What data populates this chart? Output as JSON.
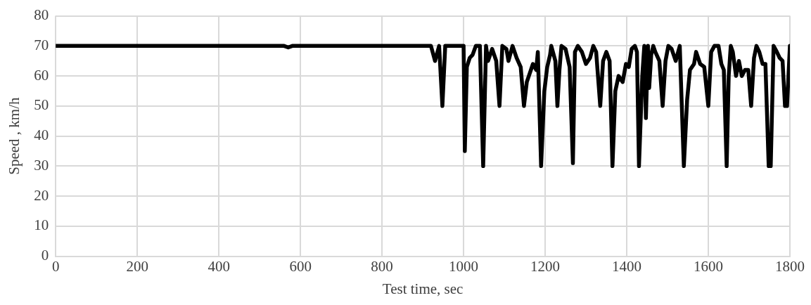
{
  "chart_data": {
    "type": "line",
    "xlabel": "Test time, sec",
    "ylabel": "Speed , km/h",
    "xlim": [
      0,
      1800
    ],
    "xticks": [
      0,
      200,
      400,
      600,
      800,
      1000,
      1200,
      1400,
      1600,
      1800
    ],
    "ylim": [
      0,
      80
    ],
    "yticks": [
      0,
      10,
      20,
      30,
      40,
      50,
      60,
      70,
      80
    ],
    "grid": true,
    "legend": false,
    "marker": "none",
    "line_style": "solid",
    "series": [
      {
        "color": "#000000",
        "x": [
          0,
          200,
          400,
          560,
          570,
          580,
          700,
          850,
          900,
          920,
          930,
          940,
          948,
          955,
          960,
          1000,
          1003,
          1008,
          1015,
          1022,
          1030,
          1040,
          1048,
          1055,
          1060,
          1070,
          1080,
          1088,
          1095,
          1105,
          1110,
          1120,
          1130,
          1140,
          1148,
          1155,
          1160,
          1170,
          1178,
          1182,
          1190,
          1198,
          1205,
          1212,
          1215,
          1225,
          1230,
          1235,
          1240,
          1250,
          1260,
          1268,
          1273,
          1280,
          1290,
          1300,
          1310,
          1318,
          1325,
          1335,
          1342,
          1350,
          1358,
          1365,
          1372,
          1380,
          1390,
          1398,
          1405,
          1412,
          1420,
          1425,
          1430,
          1438,
          1443,
          1447,
          1452,
          1455,
          1460,
          1465,
          1470,
          1480,
          1488,
          1495,
          1502,
          1510,
          1515,
          1520,
          1530,
          1540,
          1548,
          1555,
          1565,
          1570,
          1580,
          1590,
          1600,
          1607,
          1615,
          1625,
          1632,
          1638,
          1645,
          1650,
          1655,
          1660,
          1668,
          1675,
          1682,
          1690,
          1698,
          1705,
          1712,
          1718,
          1725,
          1733,
          1740,
          1748,
          1753,
          1760,
          1768,
          1775,
          1782,
          1788,
          1793,
          1800
        ],
        "values": [
          70,
          70,
          70,
          70,
          69.5,
          70,
          70,
          70,
          70,
          70,
          65,
          70,
          50,
          70,
          70,
          70,
          35,
          63,
          66,
          67,
          70,
          70,
          30,
          70,
          65,
          69,
          65,
          50,
          70,
          69,
          65,
          70,
          66,
          63,
          50,
          58,
          60,
          64,
          62,
          68,
          30,
          55,
          63,
          67,
          70,
          65,
          50,
          62,
          70,
          69,
          63,
          31,
          68,
          70,
          68,
          64,
          66,
          70,
          68,
          50,
          65,
          68,
          65,
          30,
          55,
          60,
          58,
          64,
          63,
          69,
          70,
          68,
          30,
          60,
          70,
          46,
          70,
          56,
          67,
          70,
          68,
          65,
          50,
          65,
          70,
          69,
          67,
          65,
          70,
          30,
          52,
          62,
          64,
          68,
          64,
          63,
          50,
          68,
          70,
          70,
          64,
          62,
          30,
          60,
          70,
          68,
          60,
          65,
          60,
          62,
          62,
          50,
          66,
          70,
          68,
          64,
          64,
          30,
          30,
          70,
          68,
          66,
          65,
          50,
          50,
          70
        ]
      }
    ]
  }
}
